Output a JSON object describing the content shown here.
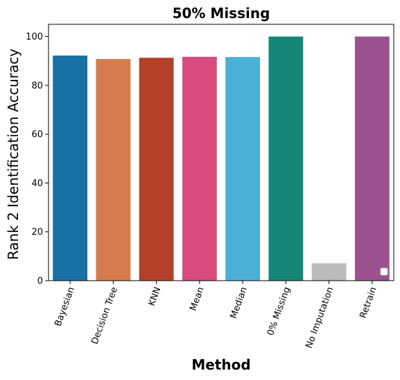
{
  "chart_data": {
    "type": "bar",
    "title": "50% Missing",
    "xlabel": "Method",
    "ylabel": "Rank 2 Identification Accuracy",
    "ylim": [
      0,
      105
    ],
    "yticks": [
      "0",
      "20",
      "40",
      "60",
      "80",
      "100"
    ],
    "categories": [
      "Bayesian",
      "Decision Tree",
      "KNN",
      "Mean",
      "Median",
      "0% Missing",
      "No Imputation",
      "Retrain"
    ],
    "values": [
      92.2,
      90.8,
      91.3,
      91.7,
      91.6,
      100,
      7.1,
      100
    ],
    "colors": [
      "#1870A6",
      "#D67C4C",
      "#B54029",
      "#D94C7F",
      "#4BB0D8",
      "#148779",
      "#BBBBBB",
      "#9C5291"
    ],
    "legend": "bottom-right (empty)"
  }
}
